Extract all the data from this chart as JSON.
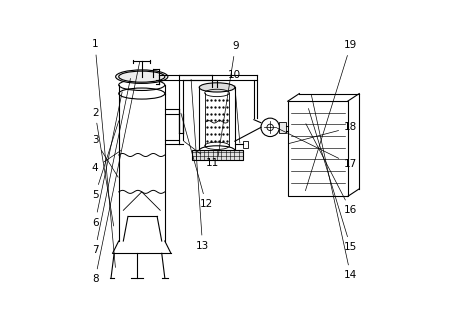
{
  "background_color": "#ffffff",
  "line_color": "#000000",
  "label_color": "#000000",
  "figsize": [
    4.74,
    3.1
  ],
  "dpi": 100
}
